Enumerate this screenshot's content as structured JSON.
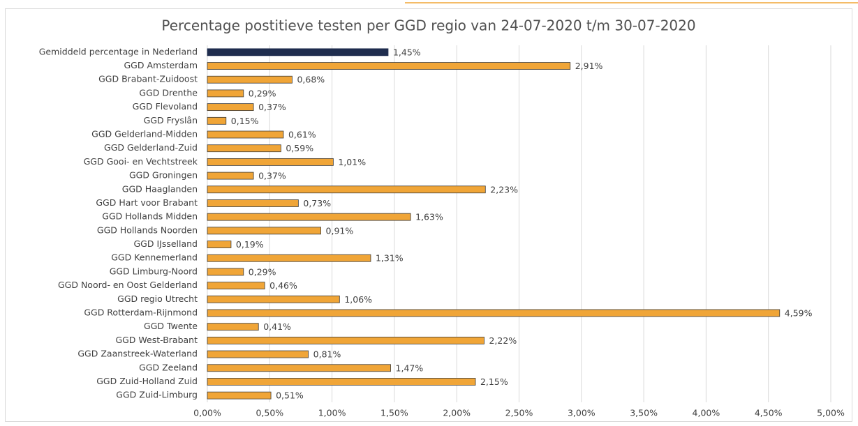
{
  "chart_data": {
    "type": "hbar",
    "title": "Percentage postitieve testen per GGD regio van 24-07-2020 t/m 30-07-2020",
    "categories": [
      "Gemiddeld percentage in Nederland",
      "GGD Amsterdam",
      "GGD Brabant-Zuidoost",
      "GGD Drenthe",
      "GGD Flevoland",
      "GGD Fryslân",
      "GGD Gelderland-Midden",
      "GGD Gelderland-Zuid",
      "GGD Gooi- en Vechtstreek",
      "GGD Groningen",
      "GGD Haaglanden",
      "GGD Hart voor Brabant",
      "GGD Hollands Midden",
      "GGD Hollands Noorden",
      "GGD IJsselland",
      "GGD Kennemerland",
      "GGD Limburg-Noord",
      "GGD Noord- en Oost Gelderland",
      "GGD regio Utrecht",
      "GGD Rotterdam-Rijnmond",
      "GGD Twente",
      "GGD West-Brabant",
      "GGD Zaanstreek-Waterland",
      "GGD Zeeland",
      "GGD Zuid-Holland Zuid",
      "GGD Zuid-Limburg"
    ],
    "values": [
      1.45,
      2.91,
      0.68,
      0.29,
      0.37,
      0.15,
      0.61,
      0.59,
      1.01,
      0.37,
      2.23,
      0.73,
      1.63,
      0.91,
      0.19,
      1.31,
      0.29,
      0.46,
      1.06,
      4.59,
      0.41,
      2.22,
      0.81,
      1.47,
      2.15,
      0.51
    ],
    "value_labels": [
      "1,45%",
      "2,91%",
      "0,68%",
      "0,29%",
      "0,37%",
      "0,15%",
      "0,61%",
      "0,59%",
      "1,01%",
      "0,37%",
      "2,23%",
      "0,73%",
      "1,63%",
      "0,91%",
      "0,19%",
      "1,31%",
      "0,29%",
      "0,46%",
      "1,06%",
      "4,59%",
      "0,41%",
      "2,22%",
      "0,81%",
      "1,47%",
      "2,15%",
      "0,51%"
    ],
    "colors": [
      "#1f2d4e",
      "#f0a537",
      "#f0a537",
      "#f0a537",
      "#f0a537",
      "#f0a537",
      "#f0a537",
      "#f0a537",
      "#f0a537",
      "#f0a537",
      "#f0a537",
      "#f0a537",
      "#f0a537",
      "#f0a537",
      "#f0a537",
      "#f0a537",
      "#f0a537",
      "#f0a537",
      "#f0a537",
      "#f0a537",
      "#f0a537",
      "#f0a537",
      "#f0a537",
      "#f0a537",
      "#f0a537",
      "#f0a537"
    ],
    "xlim": [
      0,
      5
    ],
    "xticks": [
      {
        "value": 0,
        "label": "0,00%"
      },
      {
        "value": 0.5,
        "label": "0,50%"
      },
      {
        "value": 1,
        "label": "1,00%"
      },
      {
        "value": 1.5,
        "label": "1,50%"
      },
      {
        "value": 2,
        "label": "2,00%"
      },
      {
        "value": 2.5,
        "label": "2,50%"
      },
      {
        "value": 3,
        "label": "3,00%"
      },
      {
        "value": 3.5,
        "label": "3,50%"
      },
      {
        "value": 4,
        "label": "4,00%"
      },
      {
        "value": 4.5,
        "label": "4,50%"
      },
      {
        "value": 5,
        "label": "5,00%"
      }
    ],
    "grid": true
  }
}
